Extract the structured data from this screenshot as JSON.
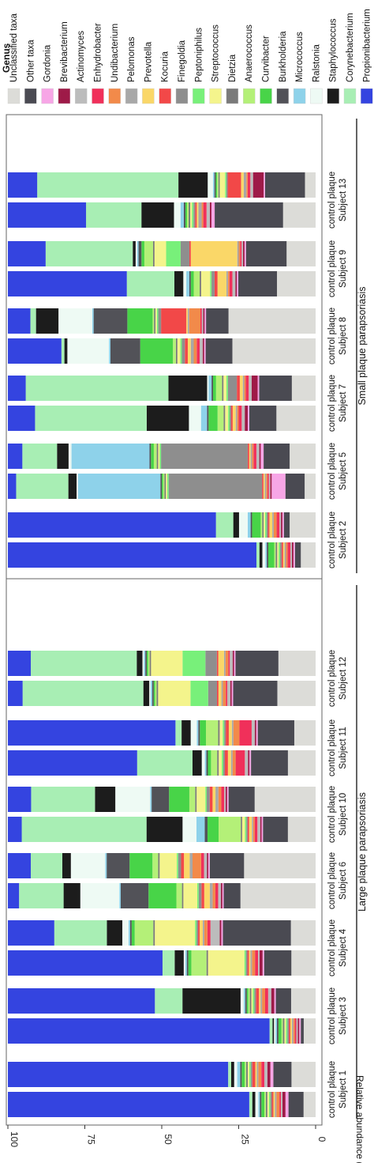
{
  "chart_data": {
    "type": "bar",
    "stacked": true,
    "orientation": "rotated-90",
    "ylabel": "Relative abundance (%)",
    "ylim": [
      0,
      100
    ],
    "yticks": [
      0,
      25,
      50,
      75,
      100
    ],
    "legend": {
      "title": "Genus",
      "placement": "right",
      "items": [
        {
          "name": "Unclassified taxa",
          "color": "#dcdcd8"
        },
        {
          "name": "Other taxa",
          "color": "#4a4a52"
        },
        {
          "name": "Gordonia",
          "color": "#f7a6e6"
        },
        {
          "name": "Brevibacterium",
          "color": "#9e1a48"
        },
        {
          "name": "Actinomyces",
          "color": "#bcbcbc"
        },
        {
          "name": "Enhydrobacter",
          "color": "#f0305a"
        },
        {
          "name": "Undibacterium",
          "color": "#f28a4a"
        },
        {
          "name": "Pelomonas",
          "color": "#a8a8a8"
        },
        {
          "name": "Prevotella",
          "color": "#fad768"
        },
        {
          "name": "Kocuria",
          "color": "#f24848"
        },
        {
          "name": "Finegoldia",
          "color": "#8e8e8e"
        },
        {
          "name": "Peptoniphilus",
          "color": "#78f07a"
        },
        {
          "name": "Streptococcus",
          "color": "#f4f48c"
        },
        {
          "name": "Dietzia",
          "color": "#7a7a7a"
        },
        {
          "name": "Anaerococcus",
          "color": "#b4f078"
        },
        {
          "name": "Curvibacter",
          "color": "#48d448"
        },
        {
          "name": "Burkholderia",
          "color": "#525258"
        },
        {
          "name": "Micrococcus",
          "color": "#8ed2ea"
        },
        {
          "name": "Ralstonia",
          "color": "#eefaf4"
        },
        {
          "name": "Staphylococcus",
          "color": "#1c1c1c"
        },
        {
          "name": "Corynebacterium",
          "color": "#a8eeb4"
        },
        {
          "name": "Propionibacterium",
          "color": "#3444e0"
        }
      ]
    },
    "groups": [
      {
        "name": "Large plaque parapsoriasis",
        "subjects": [
          {
            "label": "Subject 1",
            "samples": [
              {
                "condition": "control",
                "values": [
                  4,
                  5,
                  1,
                  1,
                  0.5,
                  0.5,
                  1,
                  0.5,
                  0.5,
                  0.5,
                  0.5,
                  0.5,
                  0.5,
                  0.5,
                  0.5,
                  1,
                  0.5,
                  0.5,
                  1,
                  1,
                  1,
                  80
                ]
              },
              {
                "condition": "plaque",
                "values": [
                  8,
                  6,
                  1,
                  1,
                  1,
                  1,
                  1,
                  0.5,
                  0.5,
                  1,
                  0.5,
                  0.5,
                  0.5,
                  0.5,
                  0.5,
                  1,
                  0.5,
                  1,
                  1,
                  1,
                  1,
                  73
                ]
              }
            ]
          },
          {
            "label": "Subject 3",
            "samples": [
              {
                "condition": "control",
                "values": [
                  4,
                  1,
                  0.5,
                  0.5,
                  0.5,
                  0.5,
                  0.5,
                  0.5,
                  0.5,
                  0.5,
                  0.5,
                  0.5,
                  0.5,
                  0.5,
                  0.5,
                  1,
                  0.5,
                  0.5,
                  0.5,
                  0.5,
                  1,
                  88
                ]
              },
              {
                "condition": "plaque",
                "values": [
                  8,
                  5,
                  0.5,
                  1,
                  1,
                  1,
                  1,
                  0.5,
                  0.5,
                  1,
                  0.5,
                  0.5,
                  0.5,
                  0.5,
                  0.5,
                  0.5,
                  0.5,
                  0.5,
                  1,
                  19,
                  9,
                  48
                ]
              }
            ]
          },
          {
            "label": "Subject 4",
            "samples": [
              {
                "condition": "control",
                "values": [
                  8,
                  9,
                  0.5,
                  1,
                  0.5,
                  1,
                  1,
                  0.5,
                  0.5,
                  0.5,
                  0.5,
                  0.5,
                  12,
                  0.5,
                  5,
                  1,
                  0.5,
                  0.5,
                  0.5,
                  3,
                  4,
                  51
                ]
              },
              {
                "condition": "plaque",
                "values": [
                  8,
                  22,
                  0.5,
                  0.5,
                  3,
                  1,
                  1,
                  0.5,
                  1,
                  0.5,
                  0.5,
                  0.5,
                  13,
                  0.5,
                  6,
                  1,
                  0.5,
                  0.5,
                  2,
                  5,
                  17,
                  15
                ]
              }
            ]
          },
          {
            "label": "Subject 6",
            "samples": [
              {
                "condition": "control",
                "values": [
                  27,
                  6,
                  0.5,
                  0.5,
                  1,
                  1,
                  1,
                  1,
                  2,
                  1,
                  1,
                  0.5,
                  5,
                  0.5,
                  2,
                  10,
                  10,
                  0.5,
                  14,
                  6,
                  16,
                  4
                ]
              },
              {
                "condition": "plaque",
                "values": [
                  25,
                  12,
                  0.5,
                  0.5,
                  1,
                  1,
                  3,
                  1,
                  2,
                  1,
                  1,
                  0.5,
                  6,
                  0.5,
                  2,
                  8,
                  8,
                  0.5,
                  12,
                  3,
                  11,
                  8
                ]
              }
            ]
          },
          {
            "label": "Subject 10",
            "samples": [
              {
                "condition": "control",
                "values": [
                  10,
                  9,
                  0.5,
                  0.5,
                  1,
                  1,
                  0.5,
                  0.5,
                  1,
                  0.5,
                  0.5,
                  0.5,
                  1,
                  0.5,
                  8,
                  4,
                  1,
                  3,
                  5,
                  13,
                  45,
                  5
                ]
              },
              {
                "condition": "plaque",
                "values": [
                  21,
                  9,
                  0.5,
                  0.5,
                  0.5,
                  1,
                  1,
                  1,
                  1,
                  1,
                  1,
                  0.5,
                  3,
                  0.5,
                  2,
                  7,
                  6,
                  0.5,
                  12,
                  7,
                  22,
                  8
                ]
              }
            ]
          },
          {
            "label": "Subject 11",
            "samples": [
              {
                "condition": "control",
                "values": [
                  9,
                  12,
                  0.5,
                  0.5,
                  1,
                  3,
                  1,
                  0.5,
                  1,
                  1,
                  0.5,
                  0.5,
                  1,
                  0.5,
                  2,
                  1,
                  0.5,
                  0.5,
                  1,
                  3,
                  18,
                  42
                ]
              },
              {
                "condition": "plaque",
                "values": [
                  7,
                  12,
                  0.5,
                  0.5,
                  1,
                  4,
                  2,
                  0.5,
                  1,
                  1,
                  0.5,
                  0.5,
                  1,
                  0.5,
                  4,
                  2,
                  0.5,
                  0.5,
                  2,
                  3,
                  2,
                  55
                ]
              }
            ]
          },
          {
            "label": "Subject 12",
            "samples": [
              {
                "condition": "control",
                "values": [
                  13,
                  15,
                  0.5,
                  0.5,
                  1,
                  0.5,
                  1,
                  0.5,
                  1,
                  0.5,
                  3,
                  6,
                  11,
                  0.5,
                  0.5,
                  0.5,
                  0.5,
                  0.5,
                  0.5,
                  2,
                  41,
                  5
                ]
              },
              {
                "condition": "plaque",
                "values": [
                  13,
                  15,
                  0.5,
                  0.5,
                  1,
                  0.5,
                  1,
                  0.5,
                  2,
                  0.5,
                  4,
                  8,
                  11,
                  0.5,
                  0.5,
                  0.5,
                  0.5,
                  0.5,
                  0.5,
                  2,
                  37,
                  8
                ]
              }
            ]
          }
        ]
      },
      {
        "name": "Small plaque parapsoriasis",
        "subjects": [
          {
            "label": "Subject 2",
            "samples": [
              {
                "condition": "control",
                "values": [
                  5,
                  2,
                  0.5,
                  0.5,
                  0.5,
                  1,
                  0.5,
                  0.5,
                  0.5,
                  0.5,
                  0.5,
                  0.5,
                  0.5,
                  0.5,
                  0.5,
                  2,
                  0.5,
                  0.5,
                  1,
                  1,
                  1,
                  84
                ]
              },
              {
                "condition": "plaque",
                "values": [
                  9,
                  2,
                  0.5,
                  0.5,
                  0.5,
                  1,
                  1,
                  0.5,
                  1,
                  0.5,
                  0.5,
                  0.5,
                  0.5,
                  0.5,
                  0.5,
                  3,
                  0.5,
                  1,
                  3,
                  2,
                  6,
                  72
                ]
              }
            ]
          },
          {
            "label": "Subject 5",
            "samples": [
              {
                "condition": "control",
                "values": [
                  4,
                  7,
                  5,
                  0.5,
                  0.5,
                  0.5,
                  0.5,
                  0.5,
                  0.5,
                  0.5,
                  34,
                  0.5,
                  0.5,
                  0.5,
                  0.5,
                  0.5,
                  0.5,
                  30,
                  0.5,
                  3,
                  19,
                  3
                ]
              },
              {
                "condition": "plaque",
                "values": [
                  9,
                  9,
                  1,
                  0.5,
                  1,
                  1,
                  0.5,
                  0.5,
                  0.5,
                  0.5,
                  30,
                  0.5,
                  0.5,
                  0.5,
                  1,
                  1,
                  0.5,
                  27,
                  1,
                  4,
                  12,
                  5
                ]
              }
            ]
          },
          {
            "label": "Subject 7",
            "samples": [
              {
                "condition": "control",
                "values": [
                  13,
                  9,
                  0.5,
                  1,
                  1,
                  1,
                  0.5,
                  0.5,
                  1,
                  0.5,
                  0.5,
                  0.5,
                  1,
                  0.5,
                  2,
                  3,
                  0.5,
                  2,
                  4,
                  14,
                  37,
                  9
                ]
              },
              {
                "condition": "plaque",
                "values": [
                  8,
                  11,
                  0.5,
                  2,
                  1,
                  1,
                  0.5,
                  0.5,
                  1,
                  1,
                  3,
                  0.5,
                  1,
                  0.5,
                  2,
                  1,
                  0.5,
                  1,
                  0.5,
                  13,
                  48,
                  6
                ]
              }
            ]
          },
          {
            "label": "Subject 8",
            "samples": [
              {
                "condition": "control",
                "values": [
                  28,
                  9,
                  0.5,
                  0.5,
                  1,
                  1,
                  1,
                  1,
                  1,
                  1,
                  1,
                  0.5,
                  1,
                  0.5,
                  1,
                  11,
                  10,
                  0.5,
                  14,
                  1,
                  1,
                  18
                ]
              },
              {
                "condition": "plaque",
                "values": [
                  31,
                  8,
                  0.5,
                  0.5,
                  0.5,
                  0.5,
                  4,
                  0.5,
                  0.5,
                  9,
                  1,
                  0.5,
                  0.5,
                  0.5,
                  0.5,
                  9,
                  12,
                  0.5,
                  12,
                  8,
                  2,
                  8
                ]
              }
            ]
          },
          {
            "label": "Subject 9",
            "samples": [
              {
                "condition": "control",
                "values": [
                  13,
                  13,
                  0.5,
                  0.5,
                  1,
                  1,
                  0.5,
                  0.5,
                  3,
                  1,
                  1,
                  0.5,
                  3,
                  0.5,
                  2,
                  1,
                  0.5,
                  1,
                  1,
                  3,
                  16,
                  40
                ]
              },
              {
                "condition": "plaque",
                "values": [
                  10,
                  14,
                  0.5,
                  0.5,
                  0.5,
                  0.5,
                  0.5,
                  0.5,
                  16,
                  0.5,
                  3,
                  5,
                  4,
                  0.5,
                  3,
                  1,
                  1,
                  0.5,
                  0.5,
                  1,
                  30,
                  13
                ]
              }
            ]
          },
          {
            "label": "Subject 13",
            "samples": [
              {
                "condition": "control",
                "values": [
                  10,
                  21,
                  1,
                  0.5,
                  1,
                  1,
                  0.5,
                  1,
                  0.5,
                  0.5,
                  0.5,
                  0.5,
                  0.5,
                  0.5,
                  0.5,
                  0.5,
                  0.5,
                  1,
                  2,
                  10,
                  17,
                  24
                ]
              },
              {
                "condition": "plaque",
                "values": [
                  4,
                  15,
                  0.5,
                  4,
                  1,
                  1,
                  0.5,
                  1,
                  1,
                  5,
                  0.5,
                  0.5,
                  2,
                  0.5,
                  0.5,
                  0.5,
                  0.5,
                  0.5,
                  2,
                  11,
                  53,
                  11
                ]
              }
            ]
          }
        ]
      }
    ]
  }
}
